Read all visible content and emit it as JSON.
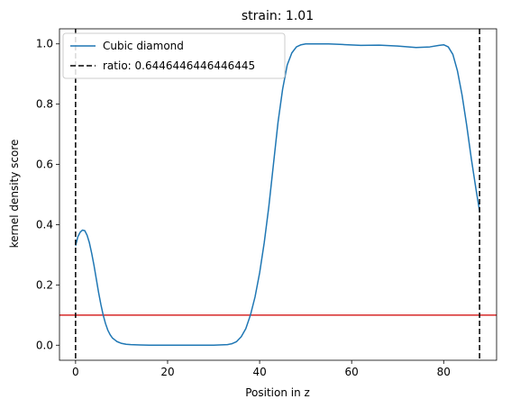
{
  "chart_data": {
    "type": "line",
    "title": "strain: 1.01",
    "xlabel": "Position in z",
    "ylabel": "kernel density score",
    "xlim": [
      -3.5,
      91.5
    ],
    "ylim": [
      -0.05,
      1.05
    ],
    "xticks": [
      0,
      20,
      40,
      60,
      80
    ],
    "xtick_labels": [
      "0",
      "20",
      "40",
      "60",
      "80"
    ],
    "yticks": [
      0.0,
      0.2,
      0.4,
      0.6,
      0.8,
      1.0
    ],
    "ytick_labels": [
      "0.0",
      "0.2",
      "0.4",
      "0.6",
      "0.8",
      "1.0"
    ],
    "grid": false,
    "legend_position": "upper-left",
    "series": [
      {
        "name": "Cubic diamond",
        "color": "#1f77b4",
        "style": "solid",
        "x": [
          0.0,
          0.5,
          1.0,
          1.5,
          2.0,
          2.5,
          3.0,
          3.5,
          4.0,
          4.5,
          5.0,
          5.5,
          6.0,
          6.5,
          7.0,
          7.5,
          8.0,
          9.0,
          10.0,
          11.0,
          12.0,
          14.0,
          16.0,
          20.0,
          25.0,
          30.0,
          33.0,
          34.0,
          35.0,
          36.0,
          37.0,
          38.0,
          39.0,
          40.0,
          41.0,
          42.0,
          43.0,
          44.0,
          45.0,
          46.0,
          47.0,
          48.0,
          49.0,
          50.0,
          52.0,
          55.0,
          58.0,
          62.0,
          66.0,
          70.0,
          74.0,
          77.0,
          79.0,
          80.0,
          81.0,
          82.0,
          83.0,
          84.0,
          85.0,
          86.0,
          87.0,
          87.8
        ],
        "y": [
          0.33,
          0.36,
          0.375,
          0.382,
          0.38,
          0.365,
          0.34,
          0.305,
          0.265,
          0.22,
          0.175,
          0.135,
          0.1,
          0.072,
          0.05,
          0.035,
          0.024,
          0.012,
          0.006,
          0.003,
          0.002,
          0.001,
          0.0,
          0.0,
          0.0,
          0.0,
          0.002,
          0.005,
          0.012,
          0.028,
          0.055,
          0.1,
          0.16,
          0.24,
          0.34,
          0.46,
          0.6,
          0.74,
          0.85,
          0.93,
          0.97,
          0.99,
          0.997,
          1.0,
          1.0,
          1.0,
          0.998,
          0.995,
          0.996,
          0.993,
          0.988,
          0.99,
          0.995,
          0.997,
          0.99,
          0.965,
          0.91,
          0.83,
          0.73,
          0.62,
          0.52,
          0.445
        ]
      }
    ],
    "vlines": [
      {
        "x": 0.0,
        "color": "#000000",
        "style": "dashed"
      },
      {
        "x": 87.8,
        "color": "#000000",
        "style": "dashed"
      }
    ],
    "hlines": [
      {
        "y": 0.1,
        "color": "#d62728",
        "style": "solid"
      }
    ],
    "legend": [
      {
        "label": "Cubic diamond",
        "color": "#1f77b4",
        "style": "solid"
      },
      {
        "label": "ratio: 0.6446446446446445",
        "color": "#000000",
        "style": "dashed"
      }
    ]
  }
}
